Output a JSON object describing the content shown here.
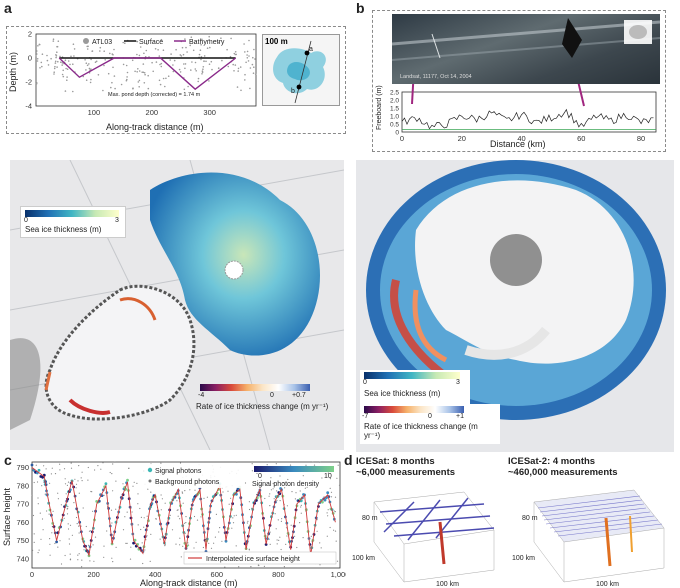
{
  "panel_labels": {
    "a": "a",
    "b": "b",
    "c": "c",
    "d": "d"
  },
  "panel_a": {
    "legend": {
      "atl03": "ATL03",
      "surface": "Surface",
      "bathymetry": "Bathymetry"
    },
    "ylabel": "Depth (m)",
    "xlabel": "Along-track distance (m)",
    "yticks": [
      "2",
      "0",
      "-2",
      "-4"
    ],
    "xticks": [
      "100",
      "200",
      "300"
    ],
    "annotation": "Max. pond depth (corrected) = 1.74 m",
    "inset": {
      "scale": "100 m",
      "point_a": "a",
      "point_b": "b"
    },
    "colorbar1": {
      "label": "Sea ice thickness (m)",
      "min": "0",
      "max": "3"
    },
    "colorbar2": {
      "label": "Rate of ice thickness change (m yr⁻¹)",
      "ticks": [
        "-4",
        "0",
        "+0.7"
      ]
    }
  },
  "panel_b": {
    "image_caption": "Landsat, 11177, Oct 14, 2004",
    "ylabel": "Freeboard (m)",
    "xlabel": "Distance (km)",
    "yticks": [
      "2.5",
      "2.0",
      "1.5",
      "1.0",
      "0.5",
      "0"
    ],
    "xticks": [
      "0",
      "20",
      "40",
      "60",
      "80"
    ],
    "colorbar1": {
      "label": "Sea ice thickness (m)",
      "min": "0",
      "max": "3"
    },
    "colorbar2": {
      "label": "Rate of ice thickness change (m yr⁻¹)",
      "ticks": [
        "-7",
        "0",
        "+1"
      ]
    }
  },
  "panel_c": {
    "ylabel": "Surface height",
    "xlabel": "Along-track distance (m)",
    "yticks": [
      "790",
      "780",
      "770",
      "760",
      "750",
      "740"
    ],
    "xticks": [
      "0",
      "200",
      "400",
      "600",
      "800",
      "1,000"
    ],
    "legend": {
      "signal": "Signal photons",
      "background": "Background photons",
      "line": "Interpolated ice surface height"
    },
    "density": {
      "label": "Signal photon density",
      "min": "0",
      "max": "10"
    }
  },
  "panel_d": {
    "left": {
      "title": "ICESat: 8 months",
      "subtitle": "~6,000 measurements",
      "z": "80 m",
      "y": "100 km",
      "x": "100 km"
    },
    "right": {
      "title": "ICESat-2: 4 months",
      "subtitle": "~460,000 measurements",
      "z": "80 m",
      "y": "100 km",
      "x": "100 km"
    }
  },
  "colors": {
    "bathymetry": "#8a2a8a",
    "signal": "#3bb7b5",
    "interp": "#d03a3a",
    "ice_high": "#1f6fb3",
    "ice_low": "#d7ecd9"
  },
  "chart_data": [
    {
      "type": "line",
      "ylabel": "Depth (m)",
      "xlabel": "Along-track distance (m)",
      "ylim": [
        -4,
        2
      ],
      "xlim": [
        0,
        380
      ],
      "series": [
        {
          "name": "Surface",
          "x": [
            40,
            135,
            215,
            345
          ],
          "y": [
            0,
            0,
            0,
            0
          ]
        },
        {
          "name": "Bathymetry",
          "x": [
            40,
            75,
            135,
            215,
            275,
            345
          ],
          "y": [
            0,
            -1.6,
            0,
            0,
            -2.6,
            0
          ]
        }
      ]
    },
    {
      "type": "line",
      "ylabel": "Freeboard (m)",
      "xlabel": "Distance (km)",
      "ylim": [
        0,
        2.5
      ],
      "xlim": [
        0,
        85
      ],
      "series": [
        {
          "x": [
            0,
            5,
            10,
            15,
            20,
            25,
            30,
            35,
            40,
            45,
            50,
            55,
            60,
            65,
            70,
            75,
            80,
            85
          ],
          "y": [
            0.6,
            0.9,
            0.3,
            0.5,
            1.0,
            0.8,
            1.2,
            0.7,
            1.1,
            0.6,
            0.9,
            1.3,
            0.3,
            1.0,
            0.7,
            1.1,
            0.6,
            0.8
          ]
        }
      ]
    },
    {
      "type": "line",
      "ylabel": "Surface height",
      "xlabel": "Along-track distance (m)",
      "ylim": [
        735,
        793
      ],
      "xlim": [
        0,
        1000
      ],
      "series": [
        {
          "name": "Interpolated ice surface height",
          "x": [
            0,
            40,
            50,
            80,
            110,
            130,
            165,
            185,
            210,
            240,
            260,
            290,
            310,
            330,
            360,
            385,
            400,
            430,
            450,
            475,
            500,
            520,
            545,
            565,
            580,
            610,
            630,
            655,
            675,
            695,
            720,
            740,
            760,
            790,
            810,
            840,
            860,
            885,
            905,
            930,
            960,
            985
          ],
          "y": [
            790,
            785,
            775,
            750,
            770,
            783,
            750,
            742,
            770,
            780,
            748,
            773,
            782,
            750,
            743,
            770,
            775,
            748,
            770,
            778,
            745,
            770,
            778,
            745,
            770,
            780,
            750,
            775,
            778,
            745,
            770,
            778,
            748,
            772,
            778,
            745,
            770,
            775,
            742,
            770,
            775,
            760
          ]
        }
      ]
    }
  ]
}
